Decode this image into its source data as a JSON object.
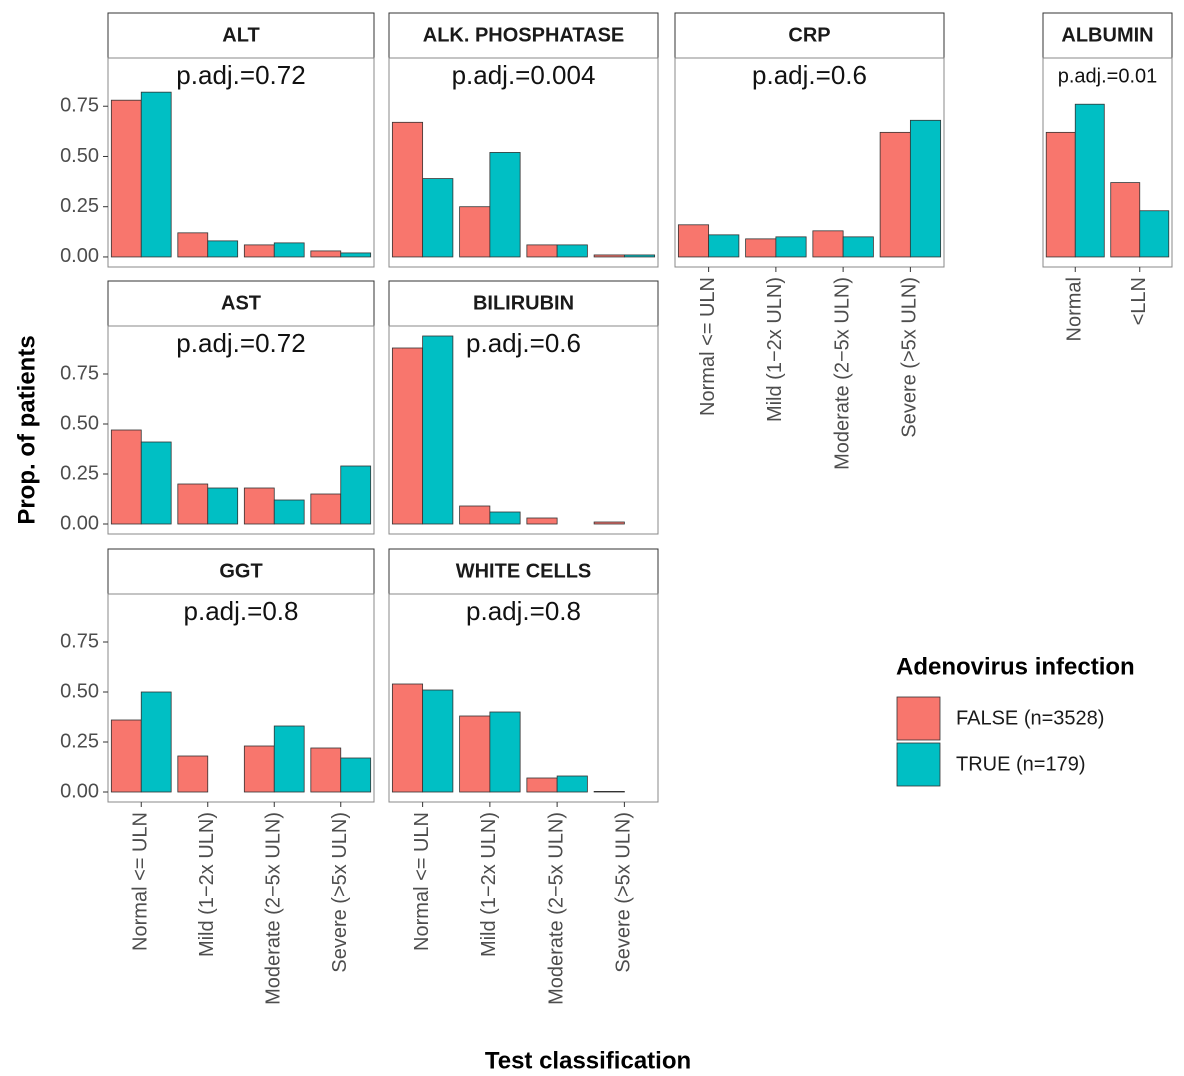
{
  "figure": {
    "ylabel": "Prop. of patients",
    "xlabel": "Test classification",
    "legend_title": "Adenovirus infection",
    "legend": [
      {
        "name": "FALSE (n=3528)",
        "color": "#F8766D"
      },
      {
        "name": "TRUE (n=179)",
        "color": "#00BFC4"
      }
    ]
  },
  "chart_data": [
    {
      "type": "bar",
      "title": "ALT",
      "annotation": "p.adj.=0.72",
      "ylim": [
        -0.05,
        0.99
      ],
      "yticks": [
        {
          "value": 0,
          "label": "0.00"
        },
        {
          "value": 0.25,
          "label": "0.25"
        },
        {
          "value": 0.5,
          "label": "0.50"
        },
        {
          "value": 0.75,
          "label": "0.75"
        }
      ],
      "series": [
        {
          "values": [
            0.78,
            0.12,
            0.06,
            0.03
          ]
        },
        {
          "values": [
            0.82,
            0.08,
            0.07,
            0.02
          ]
        }
      ]
    },
    {
      "type": "bar",
      "title": "ALK. PHOSPHATASE",
      "annotation": "p.adj.=0.004",
      "ylim": [
        -0.05,
        0.99
      ],
      "series": [
        {
          "values": [
            0.67,
            0.25,
            0.06,
            0.01
          ]
        },
        {
          "values": [
            0.39,
            0.52,
            0.06,
            0.01
          ]
        }
      ]
    },
    {
      "type": "bar",
      "title": "CRP",
      "annotation": "p.adj.=0.6",
      "ylim": [
        -0.05,
        0.99
      ],
      "categories": [
        "Normal <= ULN",
        "Mild (1−2x ULN)",
        "Moderate (2−5x ULN)",
        "Severe (>5x ULN)"
      ],
      "series": [
        {
          "values": [
            0.16,
            0.09,
            0.13,
            0.62
          ]
        },
        {
          "values": [
            0.11,
            0.1,
            0.1,
            0.68
          ]
        }
      ]
    },
    {
      "type": "bar",
      "title": "ALBUMIN",
      "annotation": "p.adj.=0.01",
      "ylim": [
        -0.05,
        0.99
      ],
      "categories": [
        "Normal",
        "<LLN"
      ],
      "series": [
        {
          "values": [
            0.62,
            0.37
          ]
        },
        {
          "values": [
            0.76,
            0.23
          ]
        }
      ]
    },
    {
      "type": "bar",
      "title": "AST",
      "annotation": "p.adj.=0.72",
      "ylim": [
        -0.05,
        0.99
      ],
      "yticks": [
        {
          "value": 0,
          "label": "0.00"
        },
        {
          "value": 0.25,
          "label": "0.25"
        },
        {
          "value": 0.5,
          "label": "0.50"
        },
        {
          "value": 0.75,
          "label": "0.75"
        }
      ],
      "series": [
        {
          "values": [
            0.47,
            0.2,
            0.18,
            0.15
          ]
        },
        {
          "values": [
            0.41,
            0.18,
            0.12,
            0.29
          ]
        }
      ]
    },
    {
      "type": "bar",
      "title": "BILIRUBIN",
      "annotation": "p.adj.=0.6",
      "ylim": [
        -0.05,
        0.99
      ],
      "series": [
        {
          "values": [
            0.88,
            0.09,
            0.03,
            0.01
          ]
        },
        {
          "values": [
            0.94,
            0.06,
            null,
            null
          ]
        }
      ]
    },
    {
      "type": "bar",
      "title": "GGT",
      "annotation": "p.adj.=0.8",
      "ylim": [
        -0.05,
        0.99
      ],
      "yticks": [
        {
          "value": 0,
          "label": "0.00"
        },
        {
          "value": 0.25,
          "label": "0.25"
        },
        {
          "value": 0.5,
          "label": "0.50"
        },
        {
          "value": 0.75,
          "label": "0.75"
        }
      ],
      "categories": [
        "Normal <= ULN",
        "Mild (1−2x ULN)",
        "Moderate (2−5x ULN)",
        "Severe (>5x ULN)"
      ],
      "series": [
        {
          "values": [
            0.36,
            0.18,
            0.23,
            0.22
          ]
        },
        {
          "values": [
            0.5,
            null,
            0.33,
            0.17
          ]
        }
      ]
    },
    {
      "type": "bar",
      "title": "WHITE CELLS",
      "annotation": "p.adj.=0.8",
      "ylim": [
        -0.05,
        0.99
      ],
      "categories": [
        "Normal <= ULN",
        "Mild (1−2x ULN)",
        "Moderate (2−5x ULN)",
        "Severe (>5x ULN)"
      ],
      "series": [
        {
          "values": [
            0.54,
            0.38,
            0.07,
            0.003
          ]
        },
        {
          "values": [
            0.51,
            0.4,
            0.08,
            null
          ]
        }
      ]
    }
  ]
}
